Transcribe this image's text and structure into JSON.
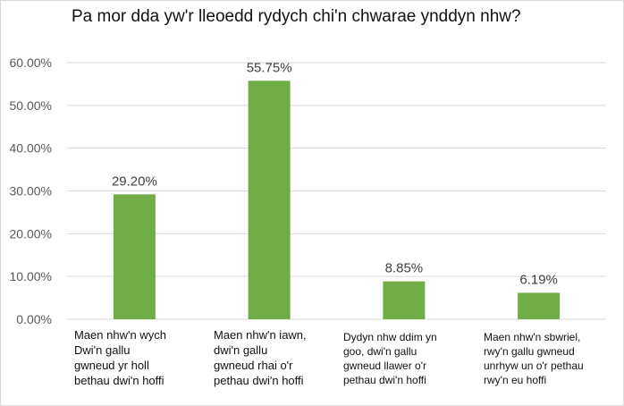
{
  "chart_data": {
    "type": "bar",
    "title": "Pa mor dda yw'r lleoedd rydych chi'n chwarae ynddyn nhw?",
    "categories": [
      "Maen nhw'n wych Dwi'n gallu gwneud yr holl bethau dwi'n hoffi",
      "Maen nhw'n iawn, dwi'n gallu gwneud rhai o'r pethau dwi'n hoffi",
      "Dydyn nhw ddim yn goo, dwi'n gallu gwneud llawer o'r pethau dwi'n hoffi",
      "Maen nhw'n sbwriel, rwy'n gallu gwneud unrhyw un o'r pethau rwy'n eu hoffi"
    ],
    "category_lines": [
      [
        "Maen nhw'n wych",
        "Dwi'n gallu",
        "gwneud yr holl",
        "bethau dwi'n hoffi"
      ],
      [
        "Maen nhw'n iawn,",
        "dwi'n gallu",
        "gwneud rhai o'r",
        "pethau dwi'n hoffi"
      ],
      [
        "Dydyn nhw ddim yn",
        "goo, dwi'n gallu",
        "gwneud llawer o'r",
        "pethau dwi'n hoffi"
      ],
      [
        "Maen nhw'n sbwriel,",
        "rwy'n gallu gwneud",
        "unrhyw un o'r pethau",
        "rwy'n eu hoffi"
      ]
    ],
    "values": [
      29.2,
      55.75,
      8.85,
      6.19
    ],
    "data_labels": [
      "29.20%",
      "55.75%",
      "8.85%",
      "6.19%"
    ],
    "ylim": [
      0,
      60
    ],
    "yticks": [
      0,
      10,
      20,
      30,
      40,
      50,
      60
    ],
    "ytick_labels": [
      "0.00%",
      "10.00%",
      "20.00%",
      "30.00%",
      "40.00%",
      "50.00%",
      "60.00%"
    ],
    "grid": true,
    "bar_color": "#70ad47",
    "grid_color": "#d9d9d9",
    "xlabel": "",
    "ylabel": ""
  }
}
